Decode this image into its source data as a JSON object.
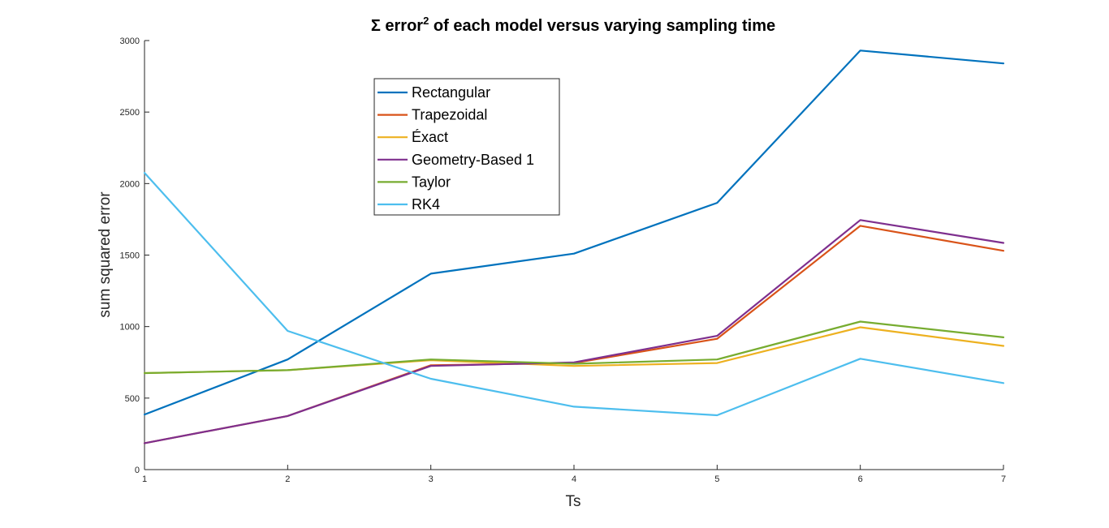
{
  "chart_data": {
    "type": "line",
    "title": {
      "prefix": "Σ error",
      "superscript": "2",
      "suffix": " of each model versus varying sampling time"
    },
    "xlabel": "Ts",
    "ylabel": "sum squared error",
    "xlim": [
      1,
      7
    ],
    "ylim": [
      0,
      3000
    ],
    "xticks": [
      1,
      2,
      3,
      4,
      5,
      6,
      7
    ],
    "yticks": [
      0,
      500,
      1000,
      1500,
      2000,
      2500,
      3000
    ],
    "x": [
      1,
      2,
      3,
      4,
      5,
      6,
      7
    ],
    "grid": false,
    "legend_position": "upper-left inside",
    "series": [
      {
        "name": "Rectangular",
        "color": "#0072BD",
        "values": [
          385,
          770,
          1370,
          1510,
          1865,
          2930,
          2840
        ]
      },
      {
        "name": "Trapezoidal",
        "color": "#D95319",
        "values": [
          185,
          375,
          730,
          745,
          915,
          1705,
          1530
        ]
      },
      {
        "name": "Éxact",
        "color": "#EDB120",
        "values": [
          675,
          695,
          765,
          725,
          745,
          995,
          865
        ]
      },
      {
        "name": "Geometry-Based 1",
        "color": "#7E2F8E",
        "values": [
          185,
          375,
          725,
          750,
          935,
          1745,
          1585
        ]
      },
      {
        "name": "Taylor",
        "color": "#77AC30",
        "values": [
          675,
          695,
          770,
          740,
          770,
          1035,
          925
        ]
      },
      {
        "name": "RK4",
        "color": "#4DBEEE",
        "values": [
          2075,
          970,
          635,
          440,
          380,
          775,
          605
        ]
      }
    ]
  }
}
